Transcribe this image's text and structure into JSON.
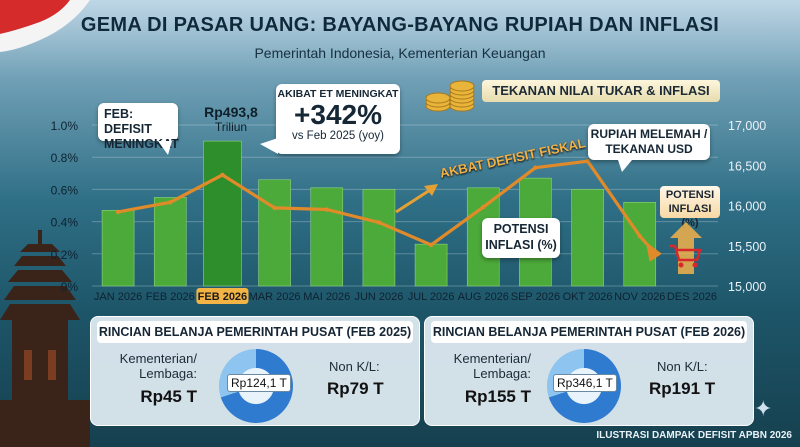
{
  "header": {
    "title": "GEMA DI PASAR UANG: BAYANG-BAYANG RUPIAH DAN INFLASI",
    "subtitle": "Pemerintah Indonesia, Kementerian Keuangan"
  },
  "legend": {
    "label": "TEKANAN NILAI TUKAR & INFLASI"
  },
  "callouts": {
    "feb_deficit": "FEB: DEFISIT MENINGKAT",
    "bar_value_line1": "Rp493,8",
    "bar_value_line2": "Triliun",
    "et_heading": "AKIBAT ET MENINGKAT",
    "et_value": "+342%",
    "et_sub": "vs Feb 2025 (yoy)",
    "rupiah": "RUPIAH MELEMAH / TEKANAN USD",
    "deficit_arrow": "AKBAT DEFISIT FISKAL",
    "potensi_mid": "POTENSI INFLASI (%)",
    "potensi_right": "POTENSI INFLASI (%)"
  },
  "chart_data": {
    "type": "bar",
    "categories": [
      "JAN 2026",
      "FEB 2026",
      "FEB 2026",
      "MAR 2026",
      "MAI 2026",
      "JUN 2026",
      "JUL 2026",
      "AUG 2026",
      "SEP 2026",
      "OKT 2026",
      "NOV 2026",
      "DES 2026"
    ],
    "highlight_index": 2,
    "series": [
      {
        "type": "bar",
        "axis": "left",
        "values": [
          0.47,
          0.55,
          0.9,
          0.66,
          0.61,
          0.6,
          0.26,
          0.61,
          0.67,
          0.6,
          0.52,
          0.0
        ]
      },
      {
        "type": "line",
        "axis": "right",
        "values": [
          15920,
          16040,
          16380,
          15970,
          15950,
          15790,
          15510,
          15980,
          16470,
          16550,
          15620,
          null
        ]
      }
    ],
    "left_axis": {
      "ylim": [
        0,
        1.0
      ],
      "ticks": [
        "0%",
        "0.2%",
        "0.4%",
        "0.6%",
        "0.8%",
        "1.0%"
      ]
    },
    "right_axis": {
      "ylim": [
        15000,
        17000
      ],
      "ticks": [
        "15,000",
        "15,500",
        "16,000",
        "16,500",
        "17,000"
      ]
    },
    "grid": true,
    "colors": {
      "bar": "#4caa3a",
      "bar_highlight": "#2f8e2c",
      "line": "#e08a2a"
    }
  },
  "panels": [
    {
      "title": "RINCIAN BELANJA PEMERINTAH PUSAT (FEB 2025)",
      "left_label": "Kementerian/ Lembaga:",
      "left_value": "Rp45 T",
      "center_value": "Rp124,1 T",
      "right_label": "Non K/L:",
      "right_value": "Rp79 T"
    },
    {
      "title": "RINCIAN BELANJA PEMERINTAH PUSAT (FEB 2026)",
      "left_label": "Kementerian/ Lembaga:",
      "left_value": "Rp155 T",
      "center_value": "Rp346,1 T",
      "right_label": "Non K/L:",
      "right_value": "Rp191 T"
    }
  ],
  "footer": "ILUSTRASI DAMPAK DEFISIT APBN 2026"
}
